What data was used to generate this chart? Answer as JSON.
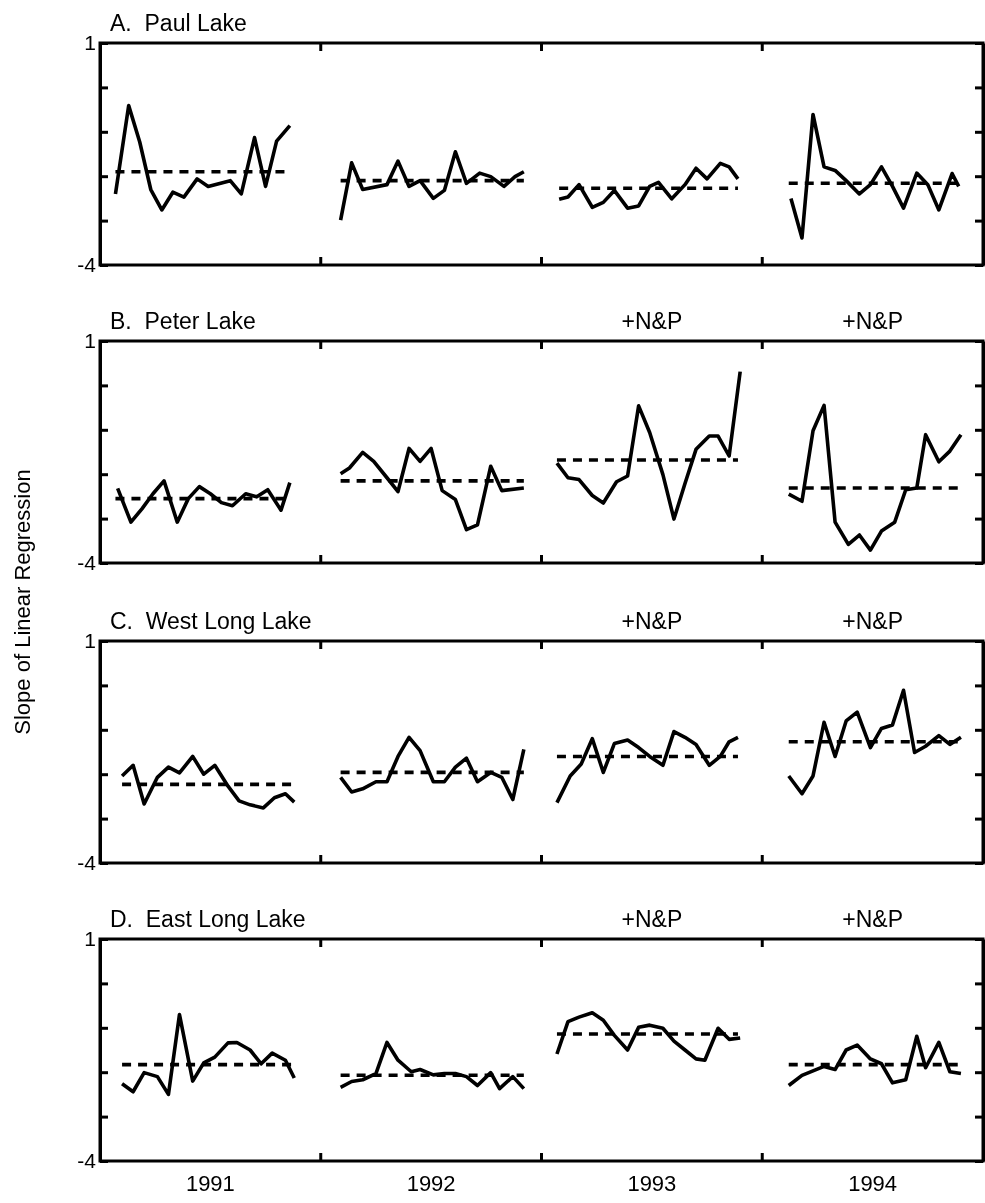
{
  "chart_data": [
    {
      "type": "line",
      "title": "A.  Paul Lake",
      "xlim": [
        1990.5,
        1994.5
      ],
      "ylim": [
        -4,
        1
      ],
      "tick_labels": "y",
      "grid": false,
      "xticks": [
        {
          "value": 1991.5,
          "label": null
        },
        {
          "value": 1992.5,
          "label": null
        },
        {
          "value": 1993.5,
          "label": null
        }
      ],
      "yticks": [
        {
          "value": 1,
          "label": "1"
        },
        {
          "value": 0,
          "label": null
        },
        {
          "value": -1,
          "label": null
        },
        {
          "value": -2,
          "label": null
        },
        {
          "value": -3,
          "label": null
        },
        {
          "value": -4,
          "label": "-4"
        }
      ],
      "series": [
        {
          "color": "#000000",
          "line_style": "solid",
          "x": [
            1990.57,
            1990.63,
            1990.68,
            1990.73,
            1990.78,
            1990.83,
            1990.88,
            1990.94,
            1990.99,
            1991.09,
            1991.14,
            1991.2,
            1991.25,
            1991.3,
            1991.36,
            null,
            1991.59,
            1991.64,
            1991.69,
            1991.8,
            1991.85,
            1991.9,
            1991.95,
            1992.01,
            1992.06,
            1992.11,
            1992.16,
            1992.22,
            1992.27,
            1992.33,
            1992.38,
            1992.42,
            null,
            1992.58,
            1992.62,
            1992.67,
            1992.73,
            1992.78,
            1992.83,
            1992.89,
            1992.94,
            1992.99,
            1993.03,
            1993.09,
            1993.15,
            1993.2,
            1993.25,
            1993.31,
            1993.35,
            1993.39,
            null,
            1993.63,
            1993.68,
            1993.73,
            1993.78,
            1993.83,
            1993.88,
            1993.94,
            1993.99,
            1994.04,
            1994.09,
            1994.14,
            1994.2,
            1994.25,
            1994.3,
            1994.36,
            1994.39
          ],
          "values": [
            -2.4,
            -0.41,
            -1.23,
            -2.3,
            -2.76,
            -2.36,
            -2.47,
            -2.06,
            -2.23,
            -2.1,
            -2.4,
            -1.13,
            -2.23,
            -1.21,
            -0.86,
            null,
            -2.99,
            -1.7,
            -2.3,
            -2.19,
            -1.66,
            -2.23,
            -2.1,
            -2.5,
            -2.32,
            -1.45,
            -2.16,
            -1.93,
            -2.01,
            -2.23,
            -2.01,
            -1.9,
            null,
            -2.52,
            -2.47,
            -2.19,
            -2.7,
            -2.59,
            -2.32,
            -2.72,
            -2.67,
            -2.23,
            -2.14,
            -2.51,
            -2.19,
            -1.82,
            -2.06,
            -1.71,
            -1.79,
            -2.06,
            null,
            -2.5,
            -3.39,
            -0.61,
            -1.79,
            -1.87,
            -2.1,
            -2.4,
            -2.19,
            -1.79,
            -2.23,
            -2.72,
            -1.93,
            -2.19,
            -2.76,
            -1.94,
            -2.23
          ]
        },
        {
          "color": "#000000",
          "line_style": "dashed",
          "x": [
            1990.57,
            1991.34,
            null,
            1991.59,
            1992.42,
            null,
            1992.58,
            1993.39,
            null,
            1993.62,
            1994.39
          ],
          "values": [
            -1.9,
            -1.9,
            null,
            -2.1,
            -2.1,
            null,
            -2.27,
            -2.27,
            null,
            -2.16,
            -2.16
          ]
        }
      ]
    },
    {
      "type": "line",
      "title": "B.  Peter Lake",
      "ylabel": "Slope of Linear Regression",
      "xlim": [
        1990.5,
        1994.5
      ],
      "ylim": [
        -4,
        1
      ],
      "tick_labels": "y",
      "grid": false,
      "xticks": [
        {
          "value": 1991.5,
          "label": null
        },
        {
          "value": 1992.5,
          "label": null
        },
        {
          "value": 1993.5,
          "label": null
        }
      ],
      "yticks": [
        {
          "value": 1,
          "label": "1"
        },
        {
          "value": 0,
          "label": null
        },
        {
          "value": -1,
          "label": null
        },
        {
          "value": -2,
          "label": null
        },
        {
          "value": -3,
          "label": null
        },
        {
          "value": -4,
          "label": "-4"
        }
      ],
      "annotations": [
        "+N&P",
        "+N&P"
      ],
      "series": [
        {
          "color": "#000000",
          "line_style": "solid",
          "x": [
            1990.58,
            1990.64,
            1990.69,
            1990.74,
            1990.79,
            1990.85,
            1990.9,
            1990.95,
            1991.0,
            1991.05,
            1991.1,
            1991.16,
            1991.21,
            1991.26,
            1991.32,
            1991.36,
            null,
            1991.59,
            1991.63,
            1991.69,
            1991.74,
            1991.8,
            1991.85,
            1991.9,
            1991.95,
            1992.0,
            1992.05,
            1992.11,
            1992.16,
            1992.21,
            1992.27,
            1992.32,
            1992.42,
            null,
            1992.57,
            1992.62,
            1992.67,
            1992.73,
            1992.78,
            1992.84,
            1992.89,
            1992.94,
            1992.99,
            1993.05,
            1993.1,
            1993.15,
            1993.2,
            1993.26,
            1993.3,
            1993.35,
            1993.4,
            null,
            1993.62,
            1993.68,
            1993.73,
            1993.78,
            1993.83,
            1993.89,
            1993.94,
            1993.99,
            1994.04,
            1994.1,
            1994.15,
            1994.2,
            1994.24,
            1994.3,
            1994.35,
            1994.4
          ],
          "values": [
            -2.32,
            -3.08,
            -2.78,
            -2.44,
            -2.15,
            -3.08,
            -2.55,
            -2.28,
            -2.44,
            -2.64,
            -2.71,
            -2.44,
            -2.51,
            -2.35,
            -2.81,
            -2.19,
            null,
            -1.99,
            -1.86,
            -1.51,
            -1.71,
            -2.08,
            -2.39,
            -1.42,
            -1.71,
            -1.42,
            -2.37,
            -2.57,
            -3.25,
            -3.14,
            -1.82,
            -2.37,
            -2.31,
            null,
            -1.75,
            -2.08,
            -2.12,
            -2.48,
            -2.65,
            -2.17,
            -2.04,
            -0.46,
            -1.06,
            -2.01,
            -3.01,
            -2.21,
            -1.44,
            -1.14,
            -1.14,
            -1.59,
            0.31,
            null,
            -2.45,
            -2.61,
            -1.02,
            -0.45,
            -3.08,
            -3.58,
            -3.37,
            -3.71,
            -3.28,
            -3.08,
            -2.35,
            -2.31,
            -1.11,
            -1.72,
            -1.48,
            -1.11
          ]
        },
        {
          "color": "#000000",
          "line_style": "dashed",
          "x": [
            1990.57,
            1991.36,
            null,
            1991.59,
            1992.42,
            null,
            1992.57,
            1993.39,
            null,
            1993.62,
            1994.4
          ],
          "values": [
            -2.55,
            -2.55,
            null,
            -2.15,
            -2.15,
            null,
            -1.68,
            -1.68,
            null,
            -2.31,
            -2.31
          ]
        }
      ]
    },
    {
      "type": "line",
      "title": "C.  West Long Lake",
      "xlim": [
        1990.5,
        1994.5
      ],
      "ylim": [
        -4,
        1
      ],
      "tick_labels": "y",
      "grid": false,
      "xticks": [
        {
          "value": 1991.5,
          "label": null
        },
        {
          "value": 1992.5,
          "label": null
        },
        {
          "value": 1993.5,
          "label": null
        }
      ],
      "yticks": [
        {
          "value": 1,
          "label": "1"
        },
        {
          "value": 0,
          "label": null
        },
        {
          "value": -1,
          "label": null
        },
        {
          "value": -2,
          "label": null
        },
        {
          "value": -3,
          "label": null
        },
        {
          "value": -4,
          "label": "-4"
        }
      ],
      "annotations": [
        "+N&P",
        "+N&P"
      ],
      "series": [
        {
          "color": "#000000",
          "line_style": "solid",
          "x": [
            1990.6,
            1990.65,
            1990.7,
            1990.76,
            1990.81,
            1990.86,
            1990.92,
            1990.97,
            1991.02,
            1991.08,
            1991.13,
            1991.18,
            1991.24,
            1991.29,
            1991.34,
            1991.38,
            null,
            1991.59,
            1991.64,
            1991.69,
            1991.75,
            1991.8,
            1991.85,
            1991.9,
            1991.95,
            1992.01,
            1992.06,
            1992.11,
            1992.16,
            1992.21,
            1992.27,
            1992.32,
            1992.37,
            1992.42,
            null,
            1992.57,
            1992.63,
            1992.68,
            1992.73,
            1992.78,
            1992.83,
            1992.89,
            1992.94,
            1992.99,
            1993.05,
            1993.1,
            1993.15,
            1993.2,
            1993.26,
            1993.31,
            1993.35,
            1993.39,
            null,
            1993.62,
            1993.68,
            1993.73,
            1993.78,
            1993.83,
            1993.88,
            1993.93,
            1993.99,
            1994.04,
            1994.09,
            1994.14,
            1994.19,
            1994.24,
            1994.3,
            1994.35,
            1994.4
          ],
          "values": [
            -2.04,
            -1.8,
            -2.67,
            -2.07,
            -1.84,
            -1.97,
            -1.6,
            -2.0,
            -1.8,
            -2.27,
            -2.6,
            -2.69,
            -2.76,
            -2.53,
            -2.44,
            -2.63,
            null,
            -2.07,
            -2.4,
            -2.33,
            -2.17,
            -2.17,
            -1.6,
            -1.17,
            -1.47,
            -2.17,
            -2.17,
            -1.84,
            -1.64,
            -2.17,
            -1.96,
            -2.07,
            -2.57,
            -1.44,
            null,
            -2.64,
            -2.04,
            -1.77,
            -1.2,
            -1.96,
            -1.31,
            -1.23,
            -1.4,
            -1.6,
            -1.8,
            -1.04,
            -1.17,
            -1.33,
            -1.8,
            -1.6,
            -1.27,
            -1.17,
            null,
            -2.04,
            -2.44,
            -2.04,
            -0.83,
            -1.6,
            -0.8,
            -0.6,
            -1.4,
            -0.97,
            -0.89,
            -0.11,
            -1.51,
            -1.37,
            -1.13,
            -1.33,
            -1.17
          ]
        },
        {
          "color": "#000000",
          "line_style": "dashed",
          "x": [
            1990.6,
            1991.38,
            null,
            1991.59,
            1992.42,
            null,
            1992.57,
            1993.39,
            null,
            1993.62,
            1994.39
          ],
          "values": [
            -2.23,
            -2.23,
            null,
            -1.96,
            -1.96,
            null,
            -1.6,
            -1.6,
            null,
            -1.27,
            -1.27
          ]
        }
      ]
    },
    {
      "type": "line",
      "title": "D.  East Long Lake",
      "xlim": [
        1990.5,
        1994.5
      ],
      "ylim": [
        -4,
        1
      ],
      "grid": false,
      "xticks": [
        1991,
        {
          "value": 1991.5,
          "label": null
        },
        1992,
        {
          "value": 1992.5,
          "label": null
        },
        1993,
        {
          "value": 1993.5,
          "label": null
        },
        1994
      ],
      "yticks": [
        {
          "value": 1,
          "label": "1"
        },
        {
          "value": 0,
          "label": null
        },
        {
          "value": -1,
          "label": null
        },
        {
          "value": -2,
          "label": null
        },
        {
          "value": -3,
          "label": null
        },
        {
          "value": -4,
          "label": "-4"
        }
      ],
      "annotations": [
        "+N&P",
        "+N&P"
      ],
      "series": [
        {
          "color": "#000000",
          "line_style": "solid",
          "x": [
            1990.6,
            1990.65,
            1990.7,
            1990.76,
            1990.81,
            1990.86,
            1990.92,
            1990.97,
            1991.02,
            1991.08,
            1991.12,
            1991.18,
            1991.23,
            1991.28,
            1991.34,
            1991.38,
            null,
            1991.59,
            1991.64,
            1991.69,
            1991.75,
            1991.8,
            1991.85,
            1991.91,
            1991.95,
            1992.01,
            1992.06,
            1992.11,
            1992.16,
            1992.21,
            1992.27,
            1992.31,
            1992.37,
            1992.42,
            null,
            1992.57,
            1992.62,
            1992.67,
            1992.73,
            1992.78,
            1992.83,
            1992.89,
            1992.94,
            1992.99,
            1993.05,
            1993.1,
            1993.15,
            1993.2,
            1993.24,
            1993.3,
            1993.35,
            1993.4,
            null,
            1993.62,
            1993.68,
            1993.73,
            1993.78,
            1993.83,
            1993.88,
            1993.93,
            1993.99,
            1994.04,
            1994.09,
            1994.15,
            1994.2,
            1994.24,
            1994.3,
            1994.35,
            1994.4
          ],
          "values": [
            -2.26,
            -2.44,
            -2.01,
            -2.1,
            -2.5,
            -0.7,
            -2.2,
            -1.79,
            -1.66,
            -1.34,
            -1.33,
            -1.5,
            -1.81,
            -1.57,
            -1.73,
            -2.13,
            null,
            -2.34,
            -2.21,
            -2.17,
            -2.03,
            -1.33,
            -1.73,
            -1.99,
            -1.94,
            -2.06,
            -2.03,
            -2.03,
            -2.1,
            -2.3,
            -2.01,
            -2.37,
            -2.1,
            -2.37,
            null,
            -1.59,
            -0.86,
            -0.76,
            -0.66,
            -0.83,
            -1.17,
            -1.5,
            -0.99,
            -0.94,
            -1.01,
            -1.3,
            -1.5,
            -1.7,
            -1.73,
            -1.01,
            -1.26,
            -1.23,
            null,
            -2.3,
            -2.07,
            -1.97,
            -1.87,
            -1.94,
            -1.5,
            -1.39,
            -1.7,
            -1.81,
            -2.24,
            -2.17,
            -1.19,
            -1.9,
            -1.33,
            -1.99,
            -2.03
          ]
        },
        {
          "color": "#000000",
          "line_style": "dashed",
          "x": [
            1990.6,
            1991.38,
            null,
            1991.59,
            1992.42,
            null,
            1992.57,
            1993.39,
            null,
            1993.62,
            1994.4
          ],
          "values": [
            -1.83,
            -1.83,
            null,
            -2.07,
            -2.07,
            null,
            -1.14,
            -1.14,
            null,
            -1.83,
            -1.83
          ]
        }
      ]
    }
  ]
}
